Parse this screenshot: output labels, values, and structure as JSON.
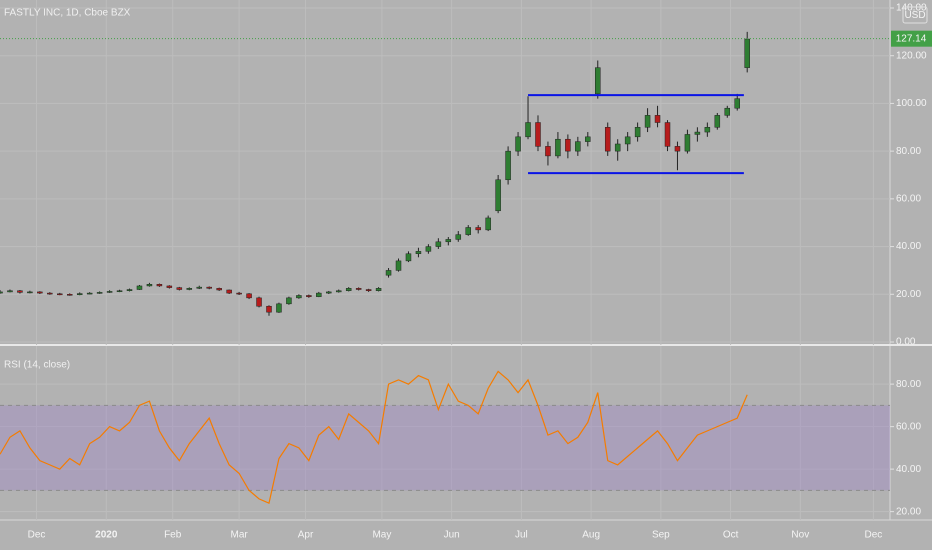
{
  "chart_data": [
    {
      "type": "candlestick",
      "title": "FASTLY INC, 1D, Cboe BZX",
      "currency": "USD",
      "x": [
        0,
        3,
        6,
        9,
        12,
        15,
        18,
        21,
        24,
        27,
        30,
        33,
        36,
        39,
        42,
        45,
        48,
        51,
        54,
        57,
        60,
        63,
        66,
        69,
        72,
        75,
        78,
        81,
        84,
        87,
        90,
        93,
        96,
        99,
        102,
        105,
        108,
        111,
        114,
        117,
        120,
        123,
        126,
        129,
        132,
        135,
        138,
        141,
        144,
        147,
        150,
        153,
        156,
        159,
        162,
        165,
        168,
        171,
        174,
        177,
        180,
        183,
        186,
        189,
        192,
        195,
        198,
        201,
        204,
        207,
        210,
        213,
        216,
        219,
        222,
        225
      ],
      "ohlc": [
        [
          20.5,
          21.8,
          20.2,
          21
        ],
        [
          21,
          22,
          20.8,
          21.5
        ],
        [
          21.5,
          21.8,
          20.3,
          20.8
        ],
        [
          20.8,
          21.5,
          20.4,
          21
        ],
        [
          21,
          21.3,
          20.1,
          20.5
        ],
        [
          20.5,
          20.9,
          19.8,
          20.2
        ],
        [
          20.2,
          20.6,
          19.6,
          20
        ],
        [
          20,
          20.4,
          19.4,
          19.8
        ],
        [
          19.8,
          20.8,
          19.6,
          20.3
        ],
        [
          20.3,
          20.9,
          20,
          20.5
        ],
        [
          20.5,
          21.2,
          20.2,
          20.8
        ],
        [
          20.8,
          21.7,
          20.6,
          21.2
        ],
        [
          21.2,
          21.9,
          20.9,
          21.5
        ],
        [
          21.5,
          22.4,
          21.2,
          22
        ],
        [
          22,
          23.9,
          21.8,
          23.5
        ],
        [
          23.5,
          24.8,
          23.2,
          24.2
        ],
        [
          24.2,
          24.5,
          23.1,
          23.5
        ],
        [
          23.5,
          23.8,
          22.4,
          22.8
        ],
        [
          22.8,
          23.1,
          21.6,
          22
        ],
        [
          22,
          22.9,
          21.7,
          22.5
        ],
        [
          22.5,
          23.6,
          22.2,
          23
        ],
        [
          23,
          23.3,
          22.1,
          22.5
        ],
        [
          22.5,
          22.8,
          21.4,
          21.8
        ],
        [
          21.8,
          22,
          20.1,
          20.5
        ],
        [
          20.5,
          21,
          19.7,
          20.2
        ],
        [
          20.2,
          20.5,
          18,
          18.5
        ],
        [
          18.5,
          19,
          14.5,
          15
        ],
        [
          15,
          15.4,
          11,
          12.5
        ],
        [
          12.5,
          16.5,
          12.2,
          16
        ],
        [
          16,
          19,
          15.6,
          18.5
        ],
        [
          18.5,
          20,
          18.1,
          19.5
        ],
        [
          19.5,
          19.9,
          18.5,
          19
        ],
        [
          19,
          21,
          18.8,
          20.5
        ],
        [
          20.5,
          21.4,
          20.1,
          21
        ],
        [
          21,
          22,
          20.7,
          21.5
        ],
        [
          21.5,
          23,
          21.2,
          22.5
        ],
        [
          22.5,
          22.9,
          21.6,
          22
        ],
        [
          22,
          22.3,
          21,
          21.5
        ],
        [
          21.5,
          23,
          21.2,
          22.5
        ],
        [
          28,
          31,
          27,
          30
        ],
        [
          30,
          35,
          29.5,
          34
        ],
        [
          34,
          38,
          33.5,
          37
        ],
        [
          37,
          39.5,
          35.5,
          38
        ],
        [
          38,
          41,
          37,
          40
        ],
        [
          40,
          43.5,
          39,
          42
        ],
        [
          42,
          44,
          40.5,
          43
        ],
        [
          43,
          46.5,
          42,
          45
        ],
        [
          45,
          49,
          44.5,
          48
        ],
        [
          48,
          49,
          45.5,
          47
        ],
        [
          47,
          53,
          46.5,
          52
        ],
        [
          55,
          70,
          54,
          68
        ],
        [
          68,
          82,
          66,
          80
        ],
        [
          80,
          88,
          78,
          86
        ],
        [
          86,
          103,
          85,
          92
        ],
        [
          92,
          95,
          80,
          82
        ],
        [
          82,
          84,
          74,
          78
        ],
        [
          78,
          88,
          77,
          85
        ],
        [
          85,
          87,
          77,
          80
        ],
        [
          80,
          86,
          78,
          84
        ],
        [
          84,
          88,
          82,
          86
        ],
        [
          104,
          118,
          102,
          115
        ],
        [
          90,
          92,
          78,
          80
        ],
        [
          80,
          85,
          76,
          83
        ],
        [
          83,
          88,
          80,
          86
        ],
        [
          86,
          92,
          84,
          90
        ],
        [
          90,
          98,
          88,
          95
        ],
        [
          95,
          99,
          90,
          92
        ],
        [
          92,
          93,
          80,
          82
        ],
        [
          82,
          84,
          72,
          80
        ],
        [
          80,
          89,
          79,
          87
        ],
        [
          87,
          90,
          84,
          88
        ],
        [
          88,
          92,
          86,
          90
        ],
        [
          90,
          96,
          89,
          95
        ],
        [
          95,
          99,
          94,
          98
        ],
        [
          98,
          104,
          97,
          102
        ],
        [
          115,
          130,
          113,
          127
        ]
      ],
      "up_color": "#2e7d32",
      "down_color": "#b71c1c",
      "last_price": 127.14,
      "last_price_color": "#43a047",
      "trendlines": [
        {
          "x": [
            159,
            224
          ],
          "y": [
            103.5,
            103.5
          ],
          "color": "#0a14e6"
        },
        {
          "x": [
            159,
            224
          ],
          "y": [
            70.8,
            70.8
          ],
          "color": "#0a14e6"
        }
      ],
      "xlim": [
        0,
        268
      ],
      "ylim": [
        0,
        140
      ],
      "yticks": [
        {
          "value": 0,
          "label": "0.00"
        },
        {
          "value": 20,
          "label": "20.00"
        },
        {
          "value": 40,
          "label": "40.00"
        },
        {
          "value": 60,
          "label": "60.00"
        },
        {
          "value": 80,
          "label": "80.00"
        },
        {
          "value": 100,
          "label": "100.00"
        },
        {
          "value": 120,
          "label": "120.00"
        },
        {
          "value": 140,
          "label": "140.00"
        }
      ],
      "grid": true
    },
    {
      "type": "line",
      "title": "RSI (14, close)",
      "x": [
        0,
        3,
        6,
        9,
        12,
        15,
        18,
        21,
        24,
        27,
        30,
        33,
        36,
        39,
        42,
        45,
        48,
        51,
        54,
        57,
        60,
        63,
        66,
        69,
        72,
        75,
        78,
        81,
        84,
        87,
        90,
        93,
        96,
        99,
        102,
        105,
        108,
        111,
        114,
        117,
        120,
        123,
        126,
        129,
        132,
        135,
        138,
        141,
        144,
        147,
        150,
        153,
        156,
        159,
        162,
        165,
        168,
        171,
        174,
        177,
        180,
        183,
        186,
        189,
        192,
        195,
        198,
        201,
        204,
        207,
        210,
        213,
        216,
        219,
        222,
        225
      ],
      "values": [
        47,
        55,
        58,
        50,
        44,
        42,
        40,
        45,
        42,
        52,
        55,
        60,
        58,
        62,
        70,
        72,
        58,
        50,
        44,
        52,
        58,
        64,
        52,
        42,
        38,
        30,
        26,
        24,
        45,
        52,
        50,
        44,
        56,
        60,
        54,
        66,
        62,
        58,
        52,
        80,
        82,
        80,
        84,
        82,
        68,
        80,
        72,
        70,
        66,
        78,
        86,
        82,
        76,
        82,
        70,
        56,
        58,
        52,
        55,
        62,
        76,
        44,
        42,
        46,
        50,
        54,
        58,
        52,
        44,
        50,
        56,
        58,
        60,
        62,
        64,
        75
      ],
      "color": "#f57c00",
      "band": [
        30,
        70
      ],
      "band_color": "#9c7fc9",
      "xlim": [
        0,
        268
      ],
      "ylim": [
        17,
        97
      ],
      "yticks": [
        {
          "value": 20,
          "label": "20.00"
        },
        {
          "value": 40,
          "label": "40.00"
        },
        {
          "value": 60,
          "label": "60.00"
        },
        {
          "value": 80,
          "label": "80.00"
        }
      ],
      "xticks": [
        {
          "value": 11,
          "label": "Dec"
        },
        {
          "value": 32,
          "label": "2020"
        },
        {
          "value": 52,
          "label": "Feb"
        },
        {
          "value": 72,
          "label": "Mar"
        },
        {
          "value": 92,
          "label": "Apr"
        },
        {
          "value": 115,
          "label": "May"
        },
        {
          "value": 136,
          "label": "Jun"
        },
        {
          "value": 157,
          "label": "Jul"
        },
        {
          "value": 178,
          "label": "Aug"
        },
        {
          "value": 199,
          "label": "Sep"
        },
        {
          "value": 220,
          "label": "Oct"
        },
        {
          "value": 241,
          "label": "Nov"
        },
        {
          "value": 263,
          "label": "Dec"
        }
      ],
      "grid": true
    }
  ]
}
